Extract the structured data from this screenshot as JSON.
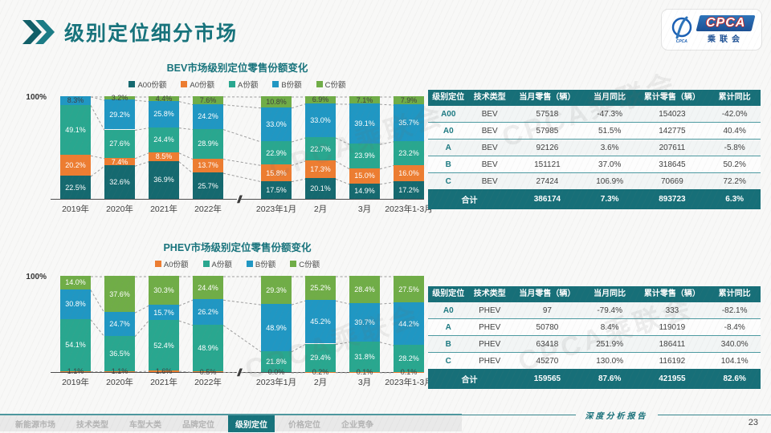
{
  "header": {
    "title": "级别定位细分市场"
  },
  "logo": {
    "acronym": "CPCA",
    "cn": "乘联会",
    "emblem_text": "CPCA"
  },
  "watermark": "CPCA乘联会",
  "chart_data": [
    {
      "type": "bar",
      "stacked": true,
      "title": "BEV市场级别定位零售份额变化",
      "axis_max_label": "100%",
      "ylim": [
        0,
        100
      ],
      "unit": "%",
      "axis_break_after_index": 3,
      "axis_break_label": "//",
      "categories": [
        "2019年",
        "2020年",
        "2021年",
        "2022年",
        "2023年1月",
        "2月",
        "3月",
        "2023年1-3月"
      ],
      "series": [
        {
          "name": "A00份额",
          "color": "#15696f",
          "label_color": "#ffffff",
          "values": [
            22.5,
            32.6,
            36.9,
            25.7,
            17.5,
            20.1,
            14.9,
            17.2
          ],
          "labels": [
            "22.5%",
            "32.6%",
            "36.9%",
            "25.7%",
            "17.5%",
            "20.1%",
            "14.9%",
            "17.2%"
          ]
        },
        {
          "name": "A0份额",
          "color": "#ed7d31",
          "label_color": "#ffffff",
          "values": [
            20.2,
            7.4,
            8.5,
            13.7,
            15.8,
            17.3,
            15.0,
            16.0
          ],
          "labels": [
            "20.2%",
            "7.4%",
            "8.5%",
            "13.7%",
            "15.8%",
            "17.3%",
            "15.0%",
            "16.0%"
          ]
        },
        {
          "name": "A份额",
          "color": "#29a78f",
          "label_color": "#ffffff",
          "values": [
            49.1,
            27.6,
            24.4,
            28.9,
            22.9,
            22.7,
            23.9,
            23.2
          ],
          "labels": [
            "49.1%",
            "27.6%",
            "24.4%",
            "28.9%",
            "22.9%",
            "22.7%",
            "23.9%",
            "23.2%"
          ]
        },
        {
          "name": "B份额",
          "color": "#2097c3",
          "label_color": "#ffffff",
          "label_overrides": {
            "0": "#3f3f3f"
          },
          "values": [
            8.3,
            29.2,
            25.8,
            24.2,
            33.0,
            33.0,
            39.1,
            35.7
          ],
          "labels": [
            "8.3%",
            "29.2%",
            "25.8%",
            "24.2%",
            "33.0%",
            "33.0%",
            "39.1%",
            "35.7%"
          ]
        },
        {
          "name": "C份额",
          "color": "#70ad47",
          "label_color": "#3f3f3f",
          "values": [
            0,
            3.2,
            4.4,
            7.6,
            10.8,
            6.9,
            7.1,
            7.9
          ],
          "labels": [
            "",
            "3.2%",
            "4.4%",
            "7.6%",
            "10.8%",
            "6.9%",
            "7.1%",
            "7.9%"
          ]
        }
      ]
    },
    {
      "type": "bar",
      "stacked": true,
      "title": "PHEV市场级别定位零售份额变化",
      "axis_max_label": "100%",
      "ylim": [
        0,
        100
      ],
      "unit": "%",
      "axis_break_after_index": 3,
      "axis_break_label": "//",
      "categories": [
        "2019年",
        "2020年",
        "2021年",
        "2022年",
        "2023年1月",
        "2月",
        "3月",
        "2023年1-3月"
      ],
      "series": [
        {
          "name": "A0份额",
          "color": "#ed7d31",
          "label_color": "#3f3f3f",
          "values": [
            1.1,
            1.1,
            1.6,
            0.5,
            0.0,
            0.2,
            0.1,
            0.1
          ],
          "labels": [
            "1.1%",
            "1.1%",
            "1.6%",
            "0.5%",
            "0.0%",
            "0.2%",
            "0.1%",
            "0.1%"
          ]
        },
        {
          "name": "A份额",
          "color": "#29a78f",
          "label_color": "#ffffff",
          "values": [
            54.1,
            36.5,
            52.4,
            48.9,
            21.8,
            29.4,
            31.8,
            28.2
          ],
          "labels": [
            "54.1%",
            "36.5%",
            "52.4%",
            "48.9%",
            "21.8%",
            "29.4%",
            "31.8%",
            "28.2%"
          ]
        },
        {
          "name": "B份额",
          "color": "#2097c3",
          "label_color": "#ffffff",
          "values": [
            30.8,
            24.7,
            15.7,
            26.2,
            48.9,
            45.2,
            39.7,
            44.2
          ],
          "labels": [
            "30.8%",
            "24.7%",
            "15.7%",
            "26.2%",
            "48.9%",
            "45.2%",
            "39.7%",
            "44.2%"
          ]
        },
        {
          "name": "C份额",
          "color": "#70ad47",
          "label_color": "#ffffff",
          "values": [
            14.0,
            37.6,
            30.3,
            24.4,
            29.3,
            25.2,
            28.4,
            27.5
          ],
          "labels": [
            "14.0%",
            "37.6%",
            "30.3%",
            "24.4%",
            "29.3%",
            "25.2%",
            "28.4%",
            "27.5%"
          ]
        }
      ]
    }
  ],
  "tables": [
    {
      "headers": [
        "级别定位",
        "技术类型",
        "当月零售（辆）",
        "当月同比",
        "累计零售（辆）",
        "累计同比"
      ],
      "rows": [
        [
          "A00",
          "BEV",
          "57518",
          "-47.3%",
          "154023",
          "-42.0%"
        ],
        [
          "A0",
          "BEV",
          "57985",
          "51.5%",
          "142775",
          "40.4%"
        ],
        [
          "A",
          "BEV",
          "92126",
          "3.6%",
          "207611",
          "-5.8%"
        ],
        [
          "B",
          "BEV",
          "151121",
          "37.0%",
          "318645",
          "50.2%"
        ],
        [
          "C",
          "BEV",
          "27424",
          "106.9%",
          "70669",
          "72.2%"
        ]
      ],
      "total": [
        "合计",
        "386174",
        "7.3%",
        "893723",
        "6.3%"
      ]
    },
    {
      "headers": [
        "级别定位",
        "技术类型",
        "当月零售（辆）",
        "当月同比",
        "累计零售（辆）",
        "累计同比"
      ],
      "rows": [
        [
          "A0",
          "PHEV",
          "97",
          "-79.4%",
          "333",
          "-82.1%"
        ],
        [
          "A",
          "PHEV",
          "50780",
          "8.4%",
          "119019",
          "-8.4%"
        ],
        [
          "B",
          "PHEV",
          "63418",
          "251.9%",
          "186411",
          "340.0%"
        ],
        [
          "C",
          "PHEV",
          "45270",
          "130.0%",
          "116192",
          "104.1%"
        ]
      ],
      "total": [
        "合计",
        "159565",
        "87.6%",
        "421955",
        "82.6%"
      ]
    }
  ],
  "footer": {
    "nav": [
      "新能源市场",
      "技术类型",
      "车型大类",
      "品牌定位",
      "级别定位",
      "价格定位",
      "企业竞争"
    ],
    "active_index": 4,
    "report_label": "深度分析报告",
    "page_number": "23"
  }
}
